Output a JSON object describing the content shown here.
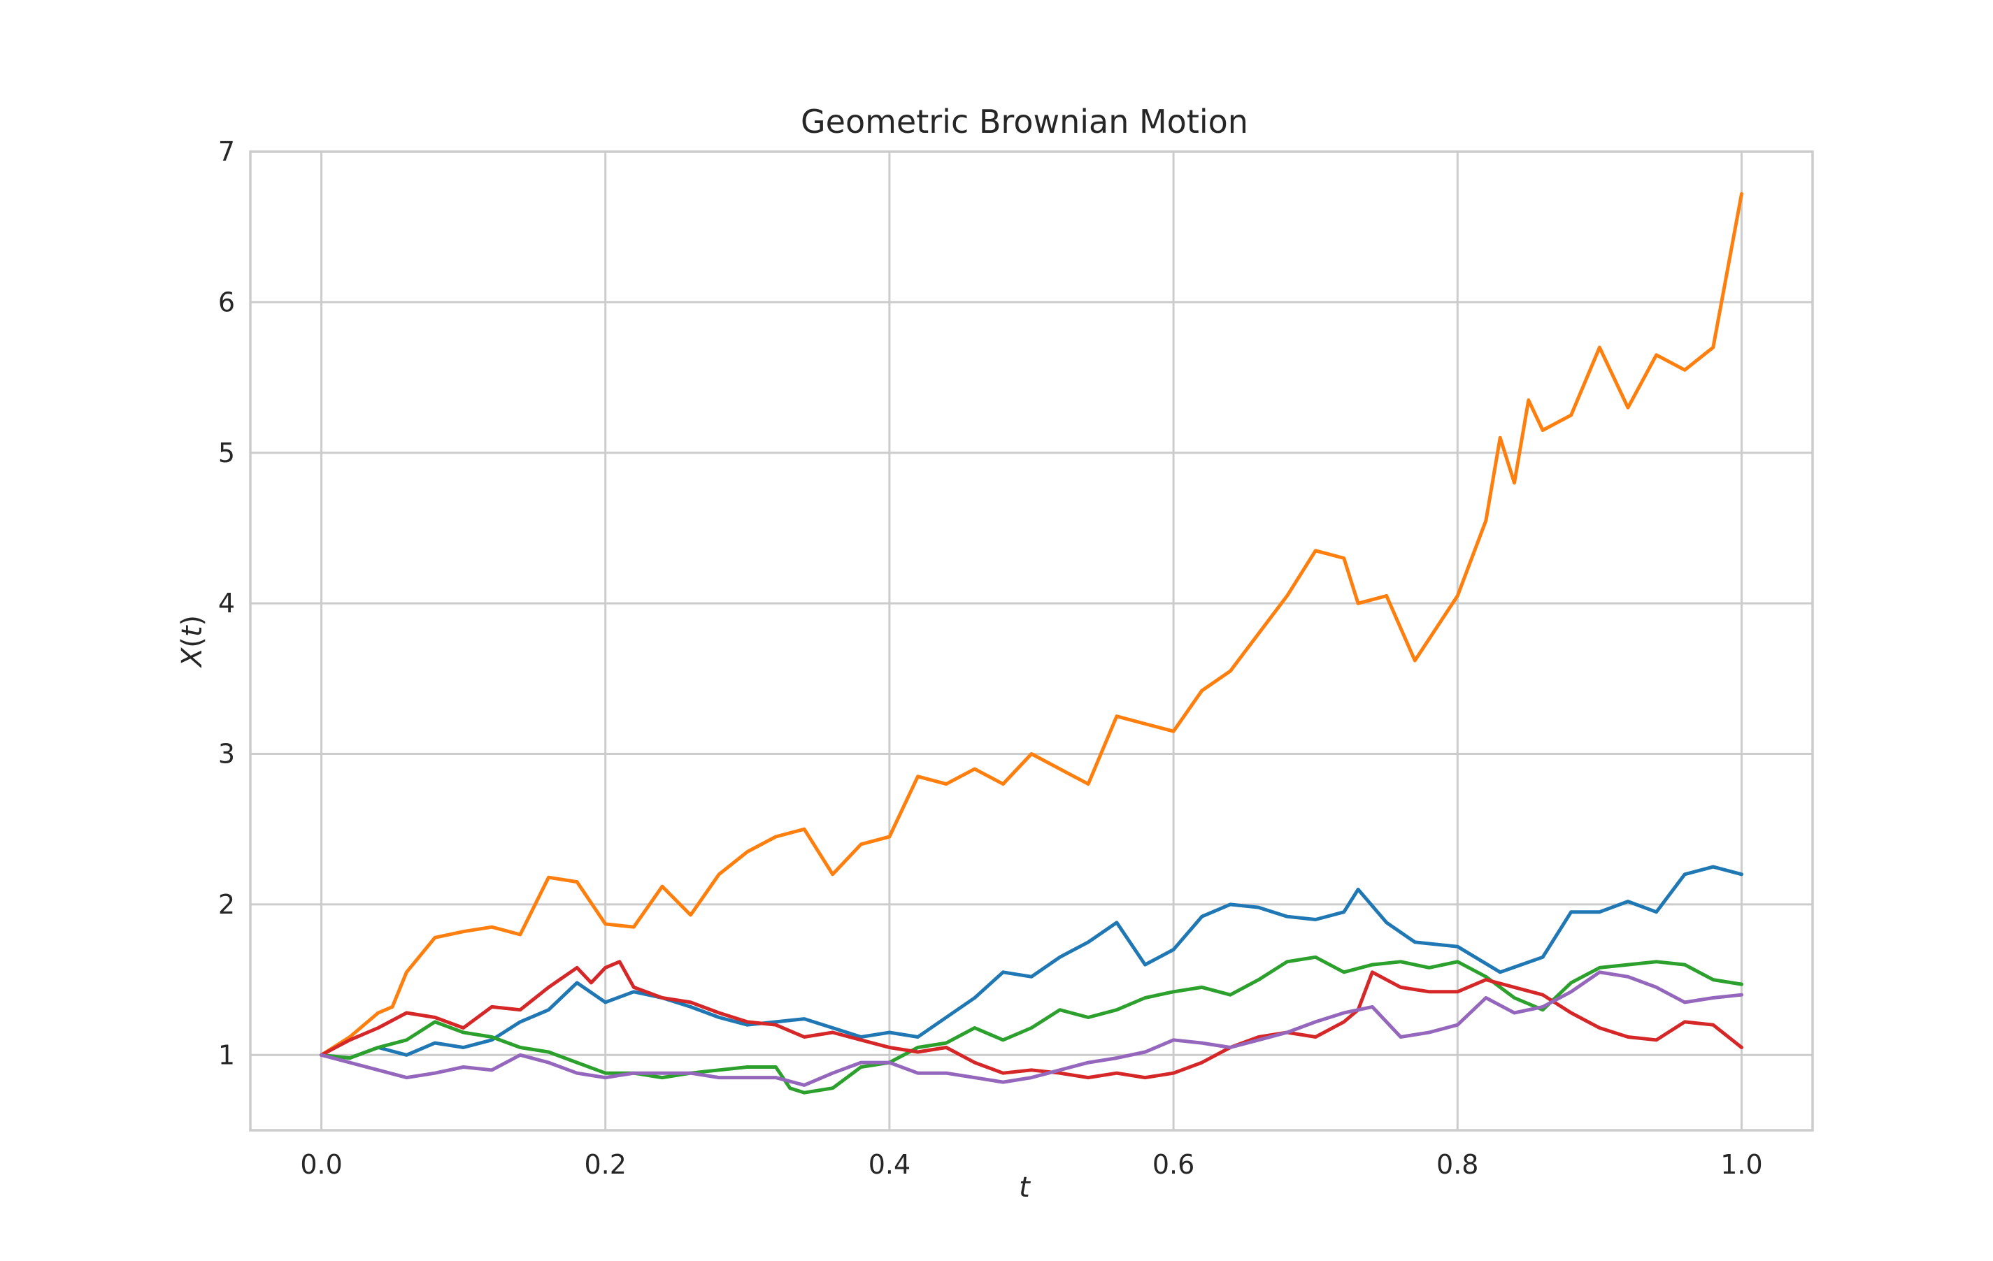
{
  "chart_data": {
    "type": "line",
    "title": "Geometric Brownian Motion",
    "xlabel": "t",
    "ylabel": "X(t)",
    "xlim": [
      -0.05,
      1.05
    ],
    "ylim": [
      0.5,
      7.0
    ],
    "xticks": [
      0.0,
      0.2,
      0.4,
      0.6,
      0.8,
      1.0
    ],
    "xtick_labels": [
      "0.0",
      "0.2",
      "0.4",
      "0.6",
      "0.8",
      "1.0"
    ],
    "yticks": [
      1,
      2,
      3,
      4,
      5,
      6,
      7
    ],
    "ytick_labels": [
      "1",
      "2",
      "3",
      "4",
      "5",
      "6",
      "7"
    ],
    "grid": true,
    "series": [
      {
        "color": "#1f77b4",
        "x": [
          0.0,
          0.02,
          0.04,
          0.06,
          0.08,
          0.1,
          0.12,
          0.14,
          0.16,
          0.18,
          0.2,
          0.22,
          0.24,
          0.26,
          0.28,
          0.3,
          0.32,
          0.34,
          0.36,
          0.38,
          0.4,
          0.42,
          0.44,
          0.46,
          0.48,
          0.5,
          0.52,
          0.54,
          0.56,
          0.58,
          0.6,
          0.62,
          0.64,
          0.66,
          0.68,
          0.7,
          0.72,
          0.73,
          0.75,
          0.77,
          0.8,
          0.83,
          0.86,
          0.88,
          0.9,
          0.92,
          0.94,
          0.96,
          0.98,
          1.0
        ],
        "y": [
          1.0,
          0.98,
          1.05,
          1.0,
          1.08,
          1.05,
          1.1,
          1.22,
          1.3,
          1.48,
          1.35,
          1.42,
          1.38,
          1.32,
          1.25,
          1.2,
          1.22,
          1.24,
          1.18,
          1.12,
          1.15,
          1.12,
          1.25,
          1.38,
          1.55,
          1.52,
          1.65,
          1.75,
          1.88,
          1.6,
          1.7,
          1.92,
          2.0,
          1.98,
          1.92,
          1.9,
          1.95,
          2.1,
          1.88,
          1.75,
          1.72,
          1.55,
          1.65,
          1.95,
          1.95,
          2.02,
          1.95,
          2.2,
          2.25,
          2.2
        ]
      },
      {
        "color": "#ff7f0e",
        "x": [
          0.0,
          0.02,
          0.04,
          0.05,
          0.06,
          0.08,
          0.1,
          0.12,
          0.14,
          0.16,
          0.18,
          0.2,
          0.22,
          0.24,
          0.26,
          0.28,
          0.3,
          0.32,
          0.34,
          0.36,
          0.38,
          0.4,
          0.42,
          0.44,
          0.46,
          0.48,
          0.5,
          0.52,
          0.54,
          0.56,
          0.58,
          0.6,
          0.62,
          0.64,
          0.66,
          0.68,
          0.7,
          0.72,
          0.73,
          0.75,
          0.77,
          0.8,
          0.82,
          0.83,
          0.84,
          0.85,
          0.86,
          0.88,
          0.9,
          0.92,
          0.94,
          0.96,
          0.98,
          1.0
        ],
        "y": [
          1.0,
          1.12,
          1.28,
          1.32,
          1.55,
          1.78,
          1.82,
          1.85,
          1.8,
          2.18,
          2.15,
          1.87,
          1.85,
          2.12,
          1.93,
          2.2,
          2.35,
          2.45,
          2.5,
          2.2,
          2.4,
          2.45,
          2.85,
          2.8,
          2.9,
          2.8,
          3.0,
          2.9,
          2.8,
          3.25,
          3.2,
          3.15,
          3.42,
          3.55,
          3.8,
          4.05,
          4.35,
          4.3,
          4.0,
          4.05,
          3.62,
          4.05,
          4.55,
          5.1,
          4.8,
          5.35,
          5.15,
          5.25,
          5.7,
          5.3,
          5.65,
          5.55,
          5.7,
          6.72
        ]
      },
      {
        "color": "#2ca02c",
        "x": [
          0.0,
          0.02,
          0.04,
          0.06,
          0.08,
          0.1,
          0.12,
          0.14,
          0.16,
          0.18,
          0.2,
          0.22,
          0.24,
          0.26,
          0.28,
          0.3,
          0.32,
          0.33,
          0.34,
          0.36,
          0.38,
          0.4,
          0.42,
          0.44,
          0.46,
          0.48,
          0.5,
          0.52,
          0.54,
          0.56,
          0.58,
          0.6,
          0.62,
          0.64,
          0.66,
          0.68,
          0.7,
          0.72,
          0.74,
          0.76,
          0.78,
          0.8,
          0.82,
          0.84,
          0.86,
          0.88,
          0.9,
          0.92,
          0.94,
          0.96,
          0.98,
          1.0
        ],
        "y": [
          1.0,
          0.98,
          1.05,
          1.1,
          1.22,
          1.15,
          1.12,
          1.05,
          1.02,
          0.95,
          0.88,
          0.88,
          0.85,
          0.88,
          0.9,
          0.92,
          0.92,
          0.78,
          0.75,
          0.78,
          0.92,
          0.95,
          1.05,
          1.08,
          1.18,
          1.1,
          1.18,
          1.3,
          1.25,
          1.3,
          1.38,
          1.42,
          1.45,
          1.4,
          1.5,
          1.62,
          1.65,
          1.55,
          1.6,
          1.62,
          1.58,
          1.62,
          1.52,
          1.38,
          1.3,
          1.48,
          1.58,
          1.6,
          1.62,
          1.6,
          1.5,
          1.47
        ]
      },
      {
        "color": "#d62728",
        "x": [
          0.0,
          0.02,
          0.04,
          0.06,
          0.08,
          0.1,
          0.12,
          0.14,
          0.16,
          0.18,
          0.19,
          0.2,
          0.21,
          0.22,
          0.24,
          0.26,
          0.28,
          0.3,
          0.32,
          0.34,
          0.36,
          0.38,
          0.4,
          0.42,
          0.44,
          0.46,
          0.48,
          0.5,
          0.52,
          0.54,
          0.56,
          0.58,
          0.6,
          0.62,
          0.64,
          0.66,
          0.68,
          0.7,
          0.72,
          0.73,
          0.74,
          0.76,
          0.78,
          0.8,
          0.82,
          0.84,
          0.86,
          0.88,
          0.9,
          0.92,
          0.94,
          0.96,
          0.98,
          1.0
        ],
        "y": [
          1.0,
          1.1,
          1.18,
          1.28,
          1.25,
          1.18,
          1.32,
          1.3,
          1.45,
          1.58,
          1.48,
          1.58,
          1.62,
          1.45,
          1.38,
          1.35,
          1.28,
          1.22,
          1.2,
          1.12,
          1.15,
          1.1,
          1.05,
          1.02,
          1.05,
          0.95,
          0.88,
          0.9,
          0.88,
          0.85,
          0.88,
          0.85,
          0.88,
          0.95,
          1.05,
          1.12,
          1.15,
          1.12,
          1.22,
          1.3,
          1.55,
          1.45,
          1.42,
          1.42,
          1.5,
          1.45,
          1.4,
          1.28,
          1.18,
          1.12,
          1.1,
          1.22,
          1.2,
          1.05
        ]
      },
      {
        "color": "#9467bd",
        "x": [
          0.0,
          0.02,
          0.04,
          0.06,
          0.08,
          0.1,
          0.12,
          0.14,
          0.16,
          0.18,
          0.2,
          0.22,
          0.24,
          0.26,
          0.28,
          0.3,
          0.32,
          0.34,
          0.36,
          0.38,
          0.4,
          0.42,
          0.44,
          0.46,
          0.48,
          0.5,
          0.52,
          0.54,
          0.56,
          0.58,
          0.6,
          0.62,
          0.64,
          0.66,
          0.68,
          0.7,
          0.72,
          0.74,
          0.76,
          0.78,
          0.8,
          0.82,
          0.84,
          0.86,
          0.88,
          0.9,
          0.92,
          0.94,
          0.96,
          0.98,
          1.0
        ],
        "y": [
          1.0,
          0.95,
          0.9,
          0.85,
          0.88,
          0.92,
          0.9,
          1.0,
          0.95,
          0.88,
          0.85,
          0.88,
          0.88,
          0.88,
          0.85,
          0.85,
          0.85,
          0.8,
          0.88,
          0.95,
          0.95,
          0.88,
          0.88,
          0.85,
          0.82,
          0.85,
          0.9,
          0.95,
          0.98,
          1.02,
          1.1,
          1.08,
          1.05,
          1.1,
          1.15,
          1.22,
          1.28,
          1.32,
          1.12,
          1.15,
          1.2,
          1.38,
          1.28,
          1.32,
          1.42,
          1.55,
          1.52,
          1.45,
          1.35,
          1.38,
          1.4
        ]
      }
    ]
  }
}
